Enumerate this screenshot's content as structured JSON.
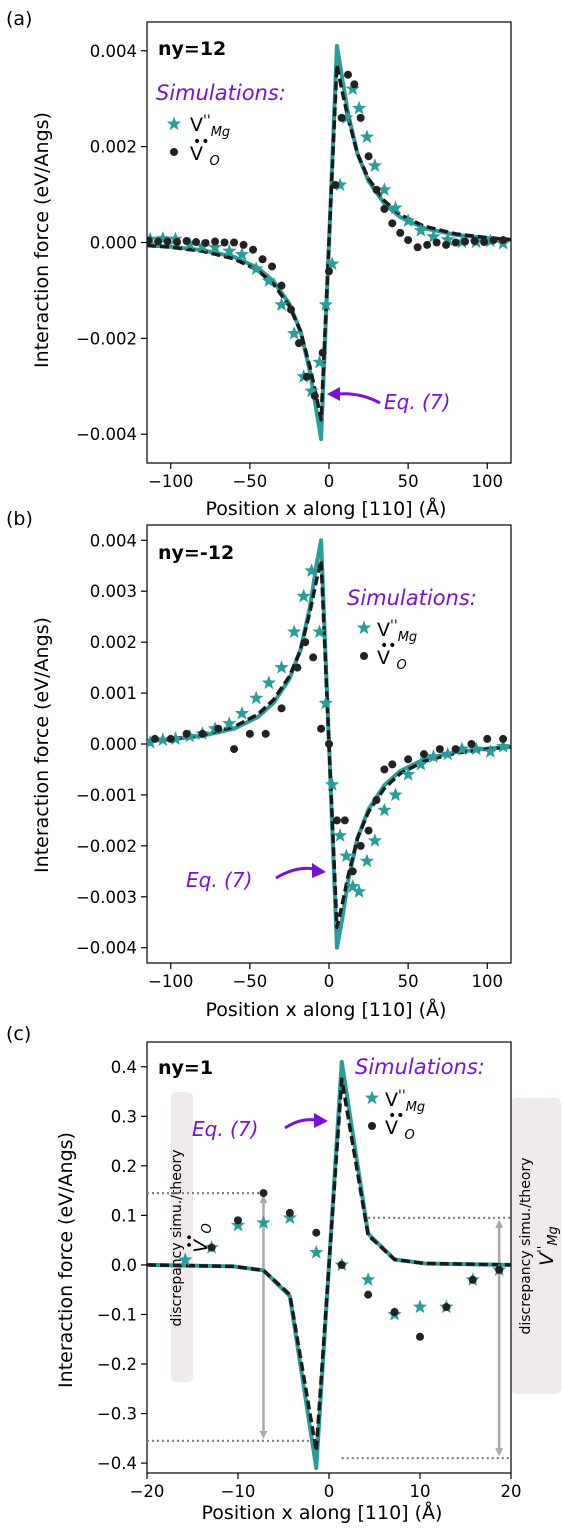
{
  "colors": {
    "teal": "#2a9d9a",
    "black": "#222222",
    "purple": "#7a12d4",
    "grey": "#808080",
    "arrow_grey": "#a8a8a8",
    "box": "#efebea"
  },
  "icons": {
    "star_marker": "star",
    "dot_marker": "circle"
  },
  "chart_data": [
    {
      "panel_label": "(a)",
      "type": "line",
      "title": "ny=12",
      "xlabel": "Position x along [110] (Å)",
      "ylabel": "Interaction force (eV/Angs)",
      "xlim": [
        -115,
        115
      ],
      "ylim": [
        -0.0046,
        0.0046
      ],
      "xticks": [
        -100,
        -50,
        0,
        50,
        100
      ],
      "xtick_labels": [
        "−100",
        "−50",
        "0",
        "50",
        "100"
      ],
      "yticks": [
        0.004,
        0.002,
        0.0,
        -0.002,
        -0.004
      ],
      "ytick_labels": [
        "0.004",
        "0.002",
        "0.000",
        "−0.002",
        "−0.004"
      ],
      "legend_title": "Simulations:",
      "legend_placement": "top-left",
      "legend": [
        "V''Mg",
        "V••O"
      ],
      "annotation": "Eq. (7)",
      "series": [
        {
          "name": "Eq. (7)",
          "style": "teal-solid",
          "x": [
            -115,
            -100,
            -80,
            -60,
            -45,
            -35,
            -25,
            -18,
            -12,
            -8,
            -5,
            5,
            8,
            12,
            18,
            25,
            35,
            45,
            60,
            80,
            100,
            115
          ],
          "y": [
            -6e-05,
            -9e-05,
            -0.00016,
            -0.0003,
            -0.00053,
            -0.00081,
            -0.00128,
            -0.00185,
            -0.0027,
            -0.0035,
            -0.0041,
            0.0041,
            0.0035,
            0.0027,
            0.00185,
            0.00128,
            0.00081,
            0.00053,
            0.0003,
            0.00016,
            9e-05,
            6e-05
          ]
        },
        {
          "name": "Eq. (7)",
          "style": "black-dashed",
          "x": [
            -115,
            -100,
            -80,
            -60,
            -45,
            -35,
            -25,
            -18,
            -12,
            -8,
            -5,
            5,
            8,
            12,
            18,
            25,
            35,
            45,
            60,
            80,
            100,
            115
          ],
          "y": [
            -6e-05,
            -0.0001,
            -0.00018,
            -0.00034,
            -0.00058,
            -0.00087,
            -0.00133,
            -0.00185,
            -0.0026,
            -0.0032,
            -0.0037,
            0.0037,
            0.0032,
            0.0026,
            0.00185,
            0.00133,
            0.00087,
            0.00058,
            0.00034,
            0.00018,
            0.0001,
            6e-05
          ]
        },
        {
          "name": "V''Mg",
          "style": "teal-star",
          "x": [
            -113,
            -105,
            -97,
            -88,
            -80,
            -72,
            -63,
            -55,
            -46,
            -38,
            -30,
            -22,
            -16,
            -11,
            -6,
            -2,
            2,
            7,
            11,
            15,
            19,
            24,
            29,
            35,
            42,
            50,
            58,
            66,
            75,
            84,
            93,
            102,
            110
          ],
          "y": [
            7e-05,
            8e-05,
            7e-05,
            -3e-05,
            -8e-05,
            -0.0001,
            -0.00018,
            -0.00025,
            -0.00055,
            -0.0008,
            -0.0013,
            -0.0019,
            -0.0028,
            -0.0031,
            -0.0025,
            -0.0013,
            -0.00045,
            0.0012,
            0.0026,
            0.0032,
            0.0028,
            0.0022,
            0.0016,
            0.0011,
            0.00072,
            0.00045,
            0.00025,
            0.00012,
            6e-05,
            1e-05,
            1e-05,
            3e-05,
            -2e-05
          ]
        },
        {
          "name": "V••O",
          "style": "black-dot",
          "x": [
            -114,
            -108,
            -102,
            -96,
            -90,
            -84,
            -78,
            -72,
            -66,
            -60,
            -54,
            -48,
            -42,
            -36,
            -30,
            -24,
            -19,
            -14,
            -9,
            -4,
            0,
            4,
            8,
            12,
            16,
            20,
            25,
            30,
            35,
            40,
            45,
            50,
            56,
            62,
            68,
            74,
            80,
            86,
            92,
            98,
            104,
            110
          ],
          "y": [
            4e-05,
            2e-05,
            2e-05,
            1e-05,
            3e-05,
            1e-05,
            -1e-05,
            2e-05,
            0.0,
            0.0,
            -5e-05,
            -0.00015,
            -0.00035,
            -0.0005,
            -0.0009,
            -0.0014,
            -0.0021,
            -0.0028,
            -0.0032,
            -0.0023,
            -0.0006,
            0.0012,
            0.0026,
            0.0035,
            0.0033,
            0.0026,
            0.0018,
            0.0011,
            0.0007,
            0.0004,
            0.0002,
            5e-05,
            -0.0001,
            -5e-05,
            0.0,
            -5e-05,
            0.0,
            2e-05,
            3e-05,
            1e-05,
            5e-05,
            5e-05
          ]
        }
      ]
    },
    {
      "panel_label": "(b)",
      "type": "line",
      "title": "ny=-12",
      "xlabel": "Position x along [110] (Å)",
      "ylabel": "Interaction force (eV/Angs)",
      "xlim": [
        -115,
        115
      ],
      "ylim": [
        -0.0043,
        0.0043
      ],
      "xticks": [
        -100,
        -50,
        0,
        50,
        100
      ],
      "xtick_labels": [
        "−100",
        "−50",
        "0",
        "50",
        "100"
      ],
      "yticks": [
        0.004,
        0.003,
        0.002,
        0.001,
        0.0,
        -0.001,
        -0.002,
        -0.003,
        -0.004
      ],
      "ytick_labels": [
        "0.004",
        "0.003",
        "0.002",
        "0.001",
        "0.000",
        "−0.001",
        "−0.002",
        "−0.003",
        "−0.004"
      ],
      "legend_title": "Simulations:",
      "legend_placement": "top-right",
      "legend": [
        "V''Mg",
        "V••O"
      ],
      "annotation": "Eq. (7)",
      "series": [
        {
          "name": "Eq. (7)",
          "style": "teal-solid",
          "x": [
            -115,
            -100,
            -80,
            -60,
            -45,
            -35,
            -25,
            -18,
            -12,
            -8,
            -5,
            5,
            8,
            12,
            18,
            25,
            35,
            45,
            60,
            80,
            100,
            115
          ],
          "y": [
            6e-05,
            9e-05,
            0.00016,
            0.0003,
            0.00053,
            0.00081,
            0.00128,
            0.00185,
            0.0027,
            0.0035,
            0.004,
            -0.004,
            -0.0035,
            -0.0027,
            -0.00185,
            -0.00128,
            -0.00081,
            -0.00053,
            -0.0003,
            -0.00016,
            -9e-05,
            -6e-05
          ]
        },
        {
          "name": "Eq. (7)",
          "style": "black-dashed",
          "x": [
            -115,
            -100,
            -80,
            -60,
            -45,
            -35,
            -25,
            -18,
            -12,
            -8,
            -5,
            5,
            8,
            12,
            18,
            25,
            35,
            45,
            60,
            80,
            100,
            115
          ],
          "y": [
            6e-05,
            0.0001,
            0.00018,
            0.00034,
            0.00058,
            0.00087,
            0.00133,
            0.00185,
            0.0026,
            0.0032,
            0.0036,
            -0.0036,
            -0.0032,
            -0.0026,
            -0.00185,
            -0.00133,
            -0.00087,
            -0.00058,
            -0.00034,
            -0.00018,
            -0.0001,
            -6e-05
          ]
        },
        {
          "name": "V''Mg",
          "style": "teal-star",
          "x": [
            -113,
            -105,
            -97,
            -88,
            -80,
            -72,
            -63,
            -55,
            -46,
            -38,
            -30,
            -22,
            -16,
            -11,
            -6,
            -2,
            2,
            7,
            11,
            15,
            19,
            24,
            29,
            35,
            42,
            50,
            58,
            66,
            75,
            84,
            93,
            102,
            110
          ],
          "y": [
            3e-05,
            8e-05,
            0.0001,
            0.00015,
            0.0002,
            0.0003,
            0.0004,
            0.0006,
            0.0009,
            0.0012,
            0.0015,
            0.0022,
            0.0029,
            0.0034,
            0.0022,
            0.0008,
            -0.0008,
            -0.0018,
            -0.0022,
            -0.0028,
            -0.0029,
            -0.0023,
            -0.0019,
            -0.0013,
            -0.001,
            -0.0006,
            -0.0004,
            -0.00025,
            -0.0002,
            -0.0001,
            -0.0001,
            -0.00015,
            -5e-05
          ]
        },
        {
          "name": "V••O",
          "style": "black-dot",
          "x": [
            -110,
            -100,
            -90,
            -80,
            -70,
            -60,
            -50,
            -40,
            -30,
            -20,
            -15,
            -10,
            -5,
            0,
            5,
            10,
            15,
            20,
            25,
            30,
            35,
            40,
            50,
            60,
            70,
            80,
            90,
            100,
            110
          ],
          "y": [
            0.0001,
            0.0001,
            0.0002,
            0.0002,
            0.0003,
            -0.0001,
            0.0002,
            0.0002,
            0.0007,
            0.0015,
            0.002,
            0.0017,
            0.0003,
            0.0,
            -0.0015,
            -0.0015,
            -0.0025,
            -0.002,
            -0.0017,
            -0.0011,
            -0.0005,
            -0.0004,
            -0.0003,
            -0.0002,
            -0.0001,
            -0.0001,
            0.0,
            0.0001,
            0.0001
          ]
        }
      ]
    },
    {
      "panel_label": "(c)",
      "type": "line",
      "title": "ny=1",
      "xlabel": "Position x along [110] (Å)",
      "ylabel": "Interaction force (eV/Angs)",
      "xlim": [
        -20,
        20
      ],
      "ylim": [
        -0.42,
        0.45
      ],
      "xticks": [
        -20,
        -10,
        0,
        10,
        20
      ],
      "xtick_labels": [
        "−20",
        "−10",
        "0",
        "10",
        "20"
      ],
      "yticks": [
        0.4,
        0.3,
        0.2,
        0.1,
        0.0,
        -0.1,
        -0.2,
        -0.3,
        -0.4
      ],
      "ytick_labels": [
        "0.4",
        "0.3",
        "0.2",
        "0.1",
        "0.0",
        "−0.1",
        "−0.2",
        "−0.3",
        "−0.4"
      ],
      "legend_title": "Simulations:",
      "legend_placement": "top-right",
      "legend": [
        "V''Mg",
        "V••O"
      ],
      "annotation": "Eq. (7)",
      "discrepancy_left_label": "discrepancy simu./theory",
      "discrepancy_left_species": "V••O",
      "discrepancy_right_label": "discrepancy simu./theory",
      "discrepancy_right_species": "V''Mg",
      "discrepancy_levels": [
        0.145,
        0.095,
        -0.355,
        -0.39
      ],
      "series": [
        {
          "name": "Eq. (7)",
          "style": "teal-solid",
          "x": [
            -20,
            -10.5,
            -7.2,
            -4.3,
            -1.4,
            1.4,
            4.3,
            7.2,
            10.5,
            20
          ],
          "y": [
            0.0,
            -0.003,
            -0.011,
            -0.063,
            -0.41,
            0.41,
            0.063,
            0.011,
            0.003,
            0.0
          ]
        },
        {
          "name": "Eq. (7)",
          "style": "black-dashed",
          "x": [
            -20,
            -10.5,
            -7.2,
            -4.3,
            -1.4,
            1.4,
            4.3,
            7.2,
            10.5,
            20
          ],
          "y": [
            0.0,
            -0.003,
            -0.011,
            -0.06,
            -0.375,
            0.375,
            0.06,
            0.011,
            0.003,
            0.0
          ]
        },
        {
          "name": "V''Mg",
          "style": "teal-star",
          "x": [
            -15.8,
            -12.9,
            -10.0,
            -7.2,
            -4.3,
            -1.4,
            1.4,
            4.3,
            7.2,
            10.0,
            12.9,
            15.8,
            18.7
          ],
          "y": [
            0.01,
            0.035,
            0.08,
            0.085,
            0.095,
            0.025,
            0.0,
            -0.03,
            -0.1,
            -0.085,
            -0.085,
            -0.03,
            -0.01
          ]
        },
        {
          "name": "V••O",
          "style": "black-dot",
          "x": [
            -12.9,
            -10.0,
            -7.2,
            -4.3,
            -1.4,
            1.4,
            4.3,
            7.2,
            10.0,
            12.9,
            15.8,
            18.7
          ],
          "y": [
            0.035,
            0.09,
            0.145,
            0.105,
            0.065,
            0.0,
            -0.06,
            -0.095,
            -0.145,
            -0.085,
            -0.03,
            -0.01
          ]
        }
      ]
    }
  ]
}
